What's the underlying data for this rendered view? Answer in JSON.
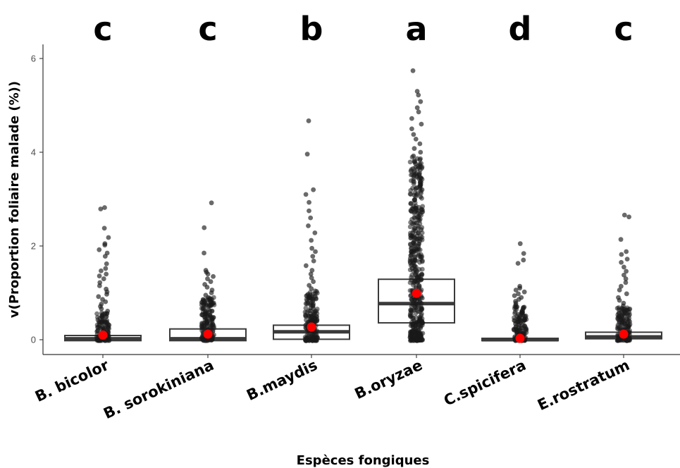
{
  "chart_data": {
    "type": "box",
    "title": "",
    "xlabel": "Espèces fongiques",
    "ylabel": "v(Proportion foliaire malade (%))",
    "ylim": [
      -0.35,
      6.3
    ],
    "yticks": [
      0,
      2,
      4,
      6
    ],
    "grid": false,
    "categories": [
      "B. bicolor",
      "B. sorokiniana",
      "B.maydis",
      "B.oryzae",
      "C.spicifera",
      "E.rostratum"
    ],
    "significance_letters": [
      "c",
      "c",
      "b",
      "a",
      "d",
      "c"
    ],
    "box_stats": [
      {
        "q1": -0.02,
        "median": 0.02,
        "q3": 0.09,
        "mean": 0.1
      },
      {
        "q1": -0.02,
        "median": 0.02,
        "q3": 0.23,
        "mean": 0.12
      },
      {
        "q1": 0.01,
        "median": 0.17,
        "q3": 0.31,
        "mean": 0.27
      },
      {
        "q1": 0.36,
        "median": 0.77,
        "q3": 1.29,
        "mean": 0.99
      },
      {
        "q1": -0.02,
        "median": 0.0,
        "q3": 0.03,
        "mean": 0.03
      },
      {
        "q1": 0.02,
        "median": 0.06,
        "q3": 0.16,
        "mean": 0.12
      }
    ],
    "outlier_points": [
      [
        2.82,
        2.79,
        2.38,
        2.18,
        2.05,
        2.02,
        1.92,
        1.85,
        1.78,
        1.62,
        1.52,
        1.47,
        1.4,
        1.36,
        1.3,
        1.22,
        1.15,
        1.08,
        1.02,
        0.97,
        0.92,
        0.86,
        0.81,
        0.76,
        0.71,
        0.66,
        0.61,
        0.56,
        0.52,
        0.48
      ],
      [
        2.92,
        2.39,
        1.85,
        1.48,
        1.44,
        1.4,
        1.35,
        1.3,
        1.24,
        1.18,
        1.12,
        1.06,
        1.0,
        0.95,
        0.9,
        0.86,
        0.81,
        0.76,
        0.71,
        0.66,
        0.61,
        0.56,
        0.52,
        0.48,
        0.44,
        0.4,
        0.36,
        0.32,
        0.29,
        0.26
      ],
      [
        4.67,
        3.96,
        3.2,
        3.1,
        2.93,
        2.75,
        2.6,
        2.43,
        2.28,
        2.12,
        1.95,
        1.88,
        1.78,
        1.68,
        1.58,
        1.48,
        1.4,
        1.32,
        1.24,
        1.16,
        1.09,
        1.03,
        0.97,
        0.92,
        0.87,
        0.82,
        0.77,
        0.72,
        0.67,
        0.62,
        0.58,
        0.54,
        0.5,
        0.46,
        0.43,
        0.4
      ],
      [
        5.74,
        5.3,
        5.22,
        5.08,
        4.95,
        4.86,
        4.72,
        4.6,
        4.5,
        4.38,
        4.28,
        4.18,
        4.08,
        4.0,
        3.92,
        3.84,
        3.76,
        3.68,
        3.6,
        3.52,
        3.44,
        3.36,
        3.28,
        3.2,
        3.12,
        3.05,
        2.98,
        2.91,
        2.84,
        2.77,
        2.7,
        2.63,
        2.56,
        2.49,
        2.42,
        2.35,
        2.28,
        2.21,
        2.14,
        2.07,
        2.0,
        1.94,
        1.88,
        1.82,
        1.76,
        1.7,
        1.64,
        1.58,
        1.52,
        1.46,
        1.4,
        1.35
      ],
      [
        2.05,
        1.84,
        1.7,
        1.63,
        1.14,
        1.1,
        1.06,
        1.02,
        0.98,
        0.94,
        0.9,
        0.86,
        0.82,
        0.78,
        0.74,
        0.7,
        0.66,
        0.62,
        0.58,
        0.54,
        0.5,
        0.46,
        0.42,
        0.38,
        0.34,
        0.3,
        0.26,
        0.22,
        0.18,
        0.14
      ],
      [
        2.66,
        2.62,
        2.14,
        1.88,
        1.82,
        1.72,
        1.65,
        1.55,
        1.46,
        1.38,
        1.3,
        1.22,
        1.14,
        1.06,
        0.98,
        0.9,
        0.84,
        0.78,
        0.72,
        0.67,
        0.62,
        0.57,
        0.52,
        0.48,
        0.44,
        0.4,
        0.36,
        0.32,
        0.29,
        0.26
      ]
    ],
    "dense_point_ranges": [
      [
        -0.02,
        0.58
      ],
      [
        -0.02,
        0.92
      ],
      [
        -0.02,
        1.05
      ],
      [
        -0.02,
        3.9
      ],
      [
        -0.02,
        0.72
      ],
      [
        -0.02,
        0.7
      ]
    ],
    "colors": {
      "box_stroke": "#3a3a3a",
      "box_fill": "#ffffff",
      "median": "#3a3a3a",
      "points": "#1a1a1a",
      "mean_marker": "#ff0000",
      "axis": "#333333"
    }
  }
}
